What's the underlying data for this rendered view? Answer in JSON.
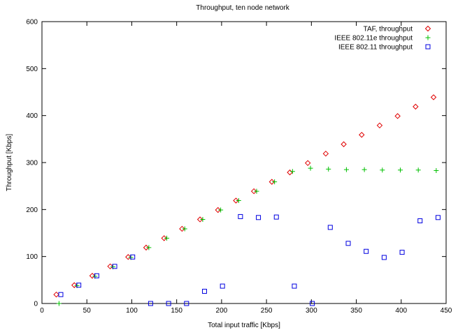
{
  "chart_data": {
    "type": "scatter",
    "title": "Throughput, ten node network",
    "xlabel": "Total input traffic [Kbps]",
    "ylabel": "Throughput [Kbps]",
    "xlim": [
      0,
      450
    ],
    "ylim": [
      0,
      600
    ],
    "xticks": [
      0,
      50,
      100,
      150,
      200,
      250,
      300,
      350,
      400,
      450
    ],
    "yticks": [
      0,
      100,
      200,
      300,
      400,
      500,
      600
    ],
    "grid": false,
    "legend_position": "top-right",
    "series": [
      {
        "name": "TAF, throughput",
        "marker": "diamond",
        "color": "#e00000",
        "points": [
          [
            16,
            19
          ],
          [
            36,
            39
          ],
          [
            56,
            59
          ],
          [
            76,
            79
          ],
          [
            96,
            99
          ],
          [
            116,
            119
          ],
          [
            136,
            139
          ],
          [
            156,
            159
          ],
          [
            176,
            179
          ],
          [
            196,
            199
          ],
          [
            216,
            219
          ],
          [
            236,
            239
          ],
          [
            256,
            259
          ],
          [
            276,
            279
          ],
          [
            296,
            299
          ],
          [
            316,
            319
          ],
          [
            336,
            339
          ],
          [
            356,
            359
          ],
          [
            376,
            379
          ],
          [
            396,
            399
          ],
          [
            416,
            419
          ],
          [
            436,
            439
          ]
        ]
      },
      {
        "name": "IEEE 802.11e throughput",
        "marker": "plus",
        "color": "#00c000",
        "points": [
          [
            19,
            0
          ],
          [
            39,
            38
          ],
          [
            59,
            58
          ],
          [
            79,
            78
          ],
          [
            99,
            98
          ],
          [
            119,
            119
          ],
          [
            139,
            139
          ],
          [
            159,
            159
          ],
          [
            179,
            179
          ],
          [
            199,
            199
          ],
          [
            219,
            219
          ],
          [
            239,
            239
          ],
          [
            259,
            259
          ],
          [
            279,
            281
          ],
          [
            299,
            288
          ],
          [
            319,
            286
          ],
          [
            339,
            285
          ],
          [
            359,
            285
          ],
          [
            379,
            284
          ],
          [
            399,
            284
          ],
          [
            419,
            284
          ],
          [
            439,
            283
          ]
        ]
      },
      {
        "name": "IEEE 802.11 throughput",
        "marker": "square",
        "color": "#0000e0",
        "points": [
          [
            21,
            19
          ],
          [
            41,
            39
          ],
          [
            61,
            59
          ],
          [
            81,
            79
          ],
          [
            101,
            99
          ],
          [
            121,
            0
          ],
          [
            141,
            0
          ],
          [
            161,
            0
          ],
          [
            181,
            26
          ],
          [
            201,
            37
          ],
          [
            221,
            185
          ],
          [
            241,
            183
          ],
          [
            261,
            184
          ],
          [
            281,
            37
          ],
          [
            301,
            0
          ],
          [
            321,
            162
          ],
          [
            341,
            128
          ],
          [
            361,
            111
          ],
          [
            381,
            98
          ],
          [
            401,
            109
          ],
          [
            421,
            176
          ],
          [
            441,
            183
          ]
        ]
      }
    ]
  }
}
